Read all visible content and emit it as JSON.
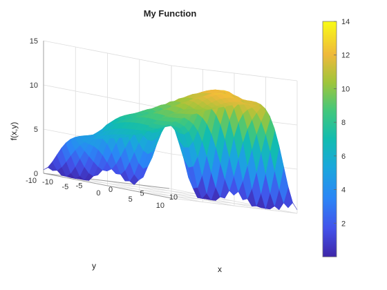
{
  "chart_data": {
    "type": "surface",
    "title": "My Function",
    "xlabel": "x",
    "ylabel": "y",
    "zlabel": "f(x,y)",
    "xlim": [
      -10,
      10
    ],
    "ylim": [
      -10,
      10
    ],
    "zlim": [
      0,
      15
    ],
    "x_ticks": [
      -10,
      -5,
      0,
      5,
      10
    ],
    "y_ticks": [
      -10,
      -5,
      0,
      5,
      10
    ],
    "z_ticks": [
      0,
      5,
      10,
      15
    ],
    "colormap": "parula",
    "colorbar": {
      "range": [
        0,
        14
      ],
      "ticks": [
        2,
        4,
        6,
        8,
        10,
        12,
        14
      ]
    },
    "grid": true
  }
}
